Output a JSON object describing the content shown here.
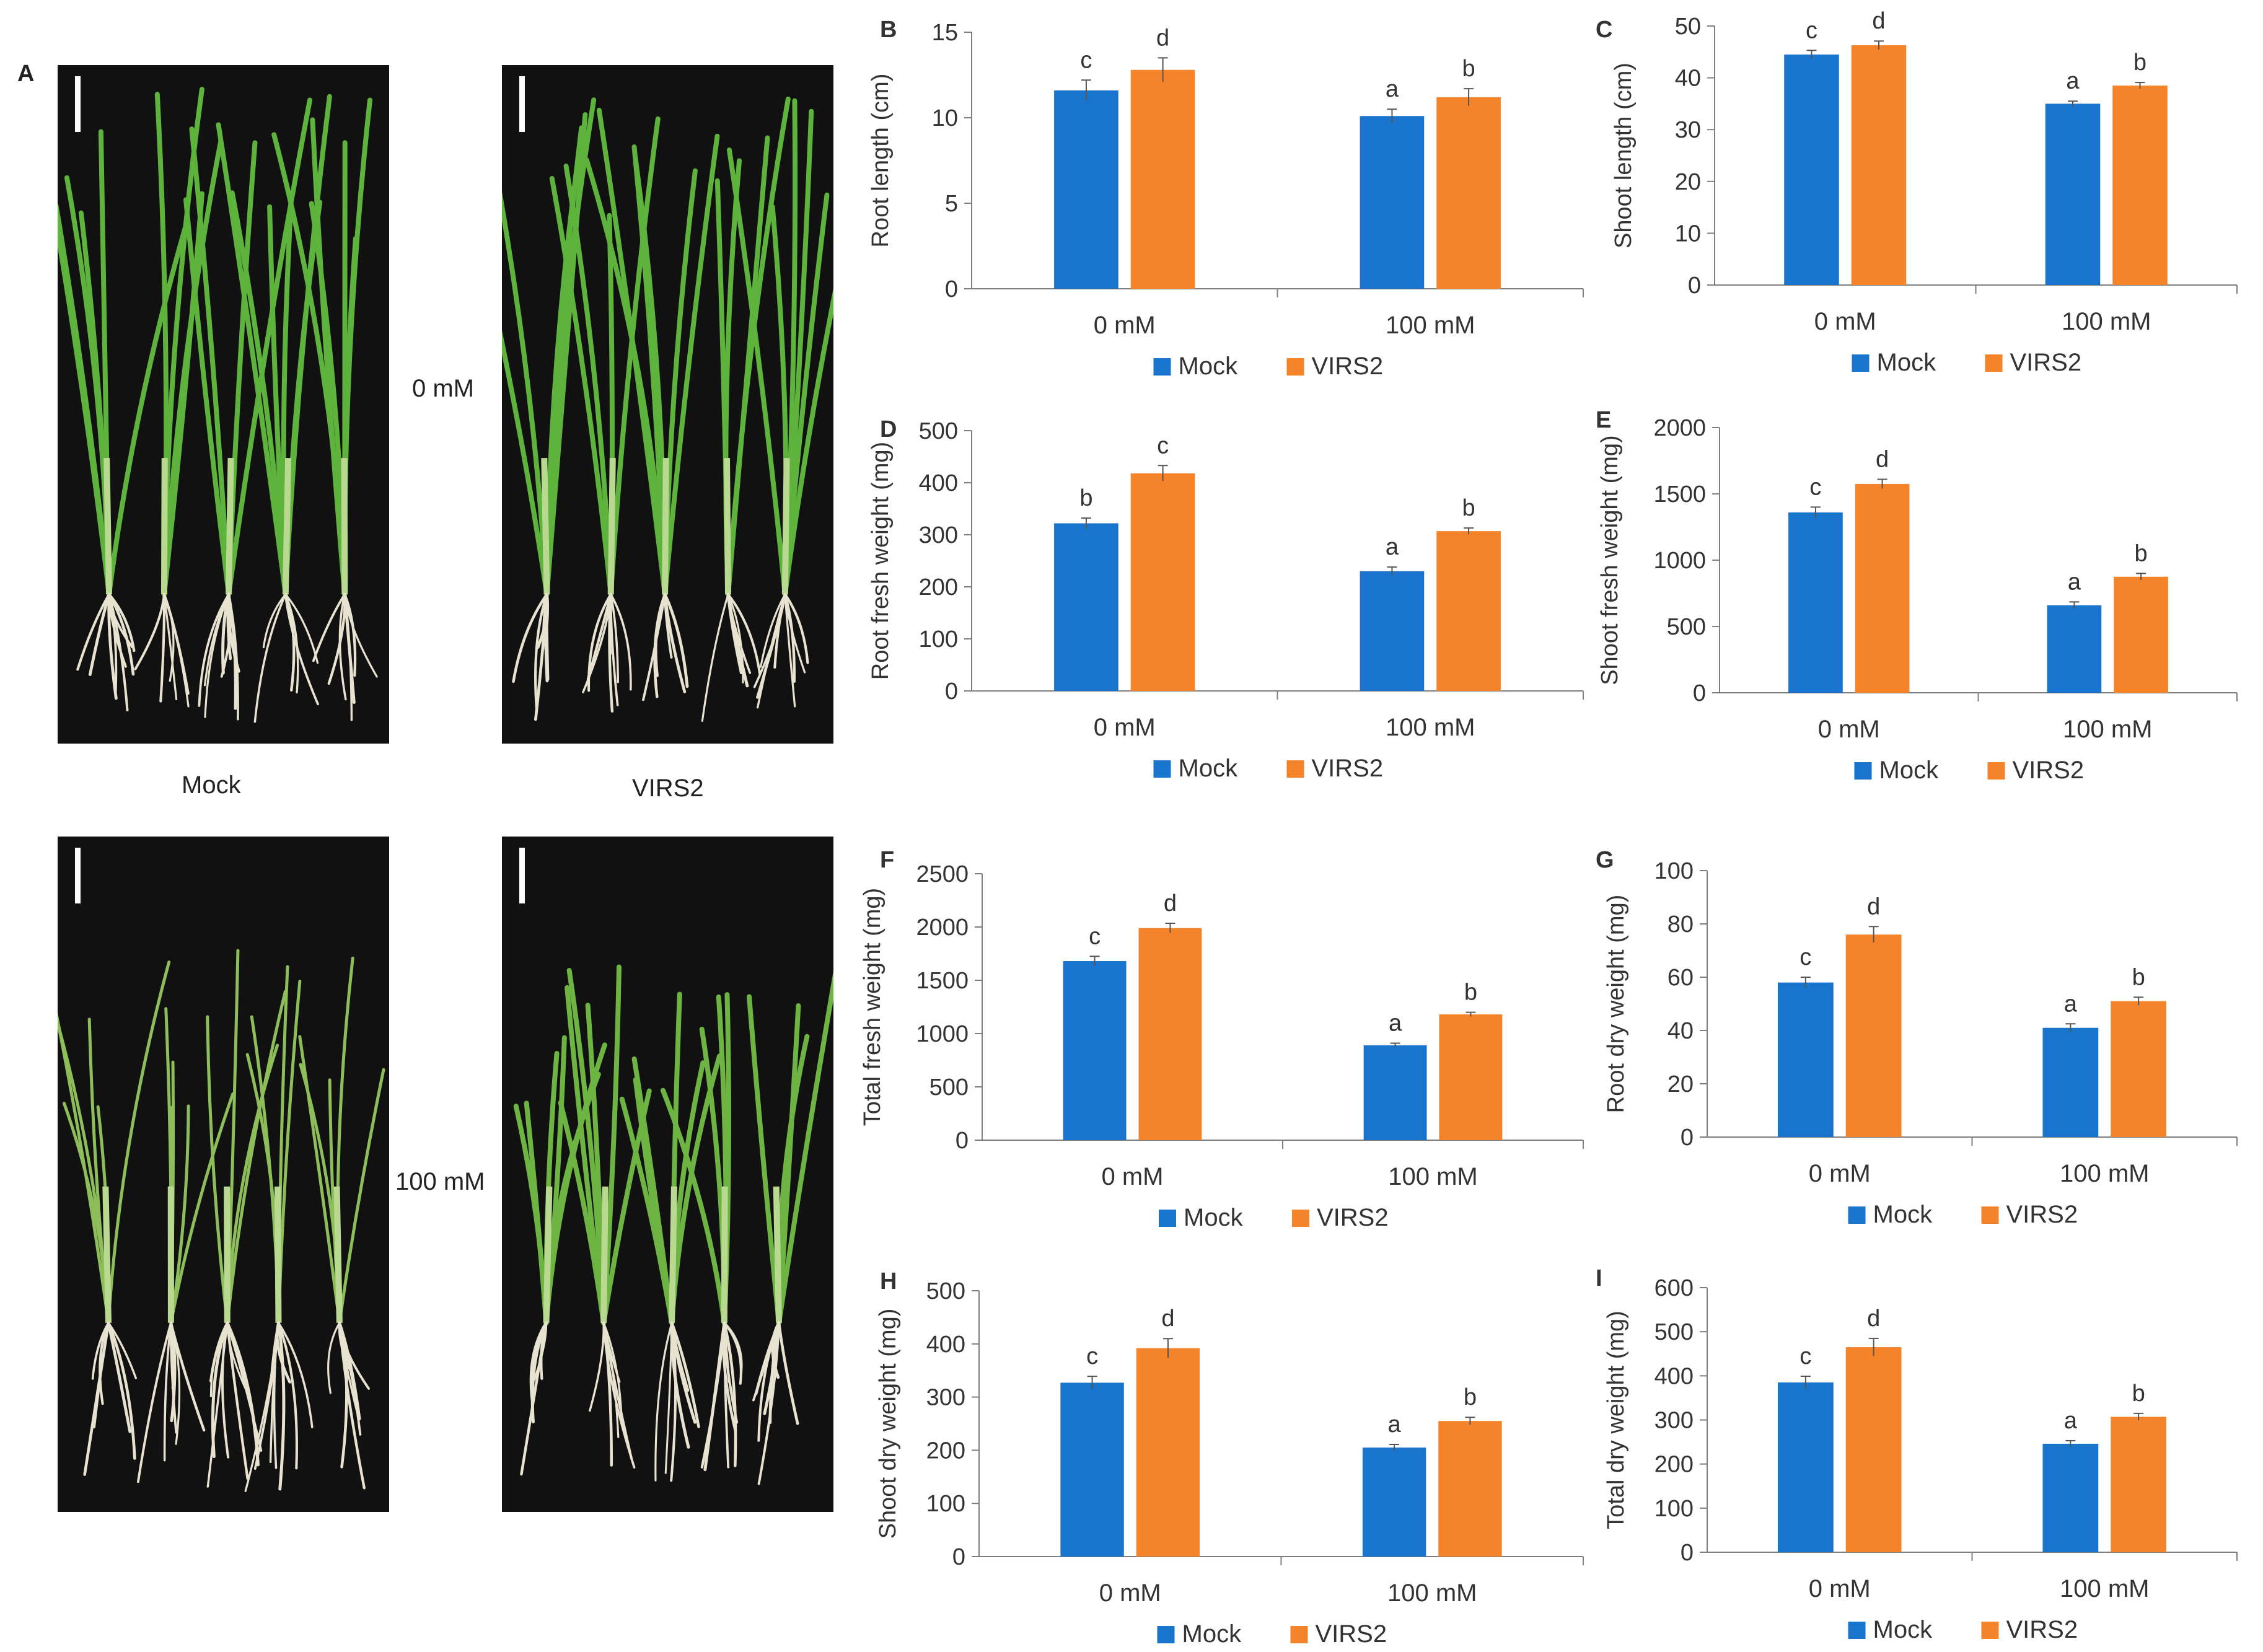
{
  "panel_a": {
    "label": "A",
    "conditions": [
      "0 mM",
      "100 mM"
    ],
    "genotypes": [
      "Mock",
      "VIRS2"
    ]
  },
  "colors": {
    "mock": "#1874CD",
    "virs2": "#F5832A",
    "photo_bg": "#111111",
    "leaf": "#5DB33C",
    "root": "#E8E2D0"
  },
  "chart_data": [
    {
      "id": "B",
      "type": "bar",
      "ylabel": "Root length (cm)",
      "categories": [
        "0 mM",
        "100 mM"
      ],
      "series": [
        {
          "name": "Mock",
          "values": [
            11.6,
            10.1
          ],
          "errors": [
            0.6,
            0.4
          ],
          "letters": [
            "c",
            "a"
          ]
        },
        {
          "name": "VIRS2",
          "values": [
            12.8,
            11.2
          ],
          "errors": [
            0.7,
            0.5
          ],
          "letters": [
            "d",
            "b"
          ]
        }
      ],
      "ylim": [
        0,
        15
      ],
      "yticks": [
        0,
        5,
        10,
        15
      ]
    },
    {
      "id": "C",
      "type": "bar",
      "ylabel": "Shoot length (cm)",
      "categories": [
        "0 mM",
        "100 mM"
      ],
      "series": [
        {
          "name": "Mock",
          "values": [
            44.5,
            35.0
          ],
          "errors": [
            0.8,
            0.5
          ],
          "letters": [
            "c",
            "a"
          ]
        },
        {
          "name": "VIRS2",
          "values": [
            46.3,
            38.5
          ],
          "errors": [
            0.8,
            0.6
          ],
          "letters": [
            "d",
            "b"
          ]
        }
      ],
      "ylim": [
        0,
        50
      ],
      "yticks": [
        0,
        10,
        20,
        30,
        40,
        50
      ]
    },
    {
      "id": "D",
      "type": "bar",
      "ylabel": "Root fresh weight (mg)",
      "categories": [
        "0 mM",
        "100 mM"
      ],
      "series": [
        {
          "name": "Mock",
          "values": [
            322,
            230
          ],
          "errors": [
            10,
            8
          ],
          "letters": [
            "b",
            "a"
          ]
        },
        {
          "name": "VIRS2",
          "values": [
            418,
            307
          ],
          "errors": [
            15,
            6
          ],
          "letters": [
            "c",
            "b"
          ]
        }
      ],
      "ylim": [
        0,
        500
      ],
      "yticks": [
        0,
        100,
        200,
        300,
        400,
        500
      ]
    },
    {
      "id": "E",
      "type": "bar",
      "ylabel": "Shoot fresh weight (mg)",
      "categories": [
        "0 mM",
        "100 mM"
      ],
      "series": [
        {
          "name": "Mock",
          "values": [
            1360,
            660
          ],
          "errors": [
            40,
            25
          ],
          "letters": [
            "c",
            "a"
          ]
        },
        {
          "name": "VIRS2",
          "values": [
            1575,
            875
          ],
          "errors": [
            35,
            25
          ],
          "letters": [
            "d",
            "b"
          ]
        }
      ],
      "ylim": [
        0,
        2000
      ],
      "yticks": [
        0,
        500,
        1000,
        1500,
        2000
      ]
    },
    {
      "id": "F",
      "type": "bar",
      "ylabel": "Total fresh weight (mg)",
      "categories": [
        "0 mM",
        "100 mM"
      ],
      "series": [
        {
          "name": "Mock",
          "values": [
            1680,
            890
          ],
          "errors": [
            45,
            20
          ],
          "letters": [
            "c",
            "a"
          ]
        },
        {
          "name": "VIRS2",
          "values": [
            1990,
            1180
          ],
          "errors": [
            45,
            20
          ],
          "letters": [
            "d",
            "b"
          ]
        }
      ],
      "ylim": [
        0,
        2500
      ],
      "yticks": [
        0,
        500,
        1000,
        1500,
        2000,
        2500
      ]
    },
    {
      "id": "G",
      "type": "bar",
      "ylabel": "Root dry weight (mg)",
      "categories": [
        "0 mM",
        "100 mM"
      ],
      "series": [
        {
          "name": "Mock",
          "values": [
            58,
            41
          ],
          "errors": [
            2.0,
            1.5
          ],
          "letters": [
            "c",
            "a"
          ]
        },
        {
          "name": "VIRS2",
          "values": [
            76,
            51
          ],
          "errors": [
            3.0,
            1.5
          ],
          "letters": [
            "d",
            "b"
          ]
        }
      ],
      "ylim": [
        0,
        100
      ],
      "yticks": [
        0,
        20,
        40,
        60,
        80,
        100
      ]
    },
    {
      "id": "H",
      "type": "bar",
      "ylabel": "Shoot dry weight (mg)",
      "categories": [
        "0 mM",
        "100 mM"
      ],
      "series": [
        {
          "name": "Mock",
          "values": [
            327,
            205
          ],
          "errors": [
            12,
            6
          ],
          "letters": [
            "c",
            "a"
          ]
        },
        {
          "name": "VIRS2",
          "values": [
            392,
            255
          ],
          "errors": [
            18,
            7
          ],
          "letters": [
            "d",
            "b"
          ]
        }
      ],
      "ylim": [
        0,
        500
      ],
      "yticks": [
        0,
        100,
        200,
        300,
        400,
        500
      ]
    },
    {
      "id": "I",
      "type": "bar",
      "ylabel": "Total dry weight (mg)",
      "categories": [
        "0 mM",
        "100 mM"
      ],
      "series": [
        {
          "name": "Mock",
          "values": [
            385,
            246
          ],
          "errors": [
            14,
            7
          ],
          "letters": [
            "c",
            "a"
          ]
        },
        {
          "name": "VIRS2",
          "values": [
            465,
            307
          ],
          "errors": [
            20,
            8
          ],
          "letters": [
            "d",
            "b"
          ]
        }
      ],
      "ylim": [
        0,
        600
      ],
      "yticks": [
        0,
        100,
        200,
        300,
        400,
        500,
        600
      ]
    }
  ]
}
